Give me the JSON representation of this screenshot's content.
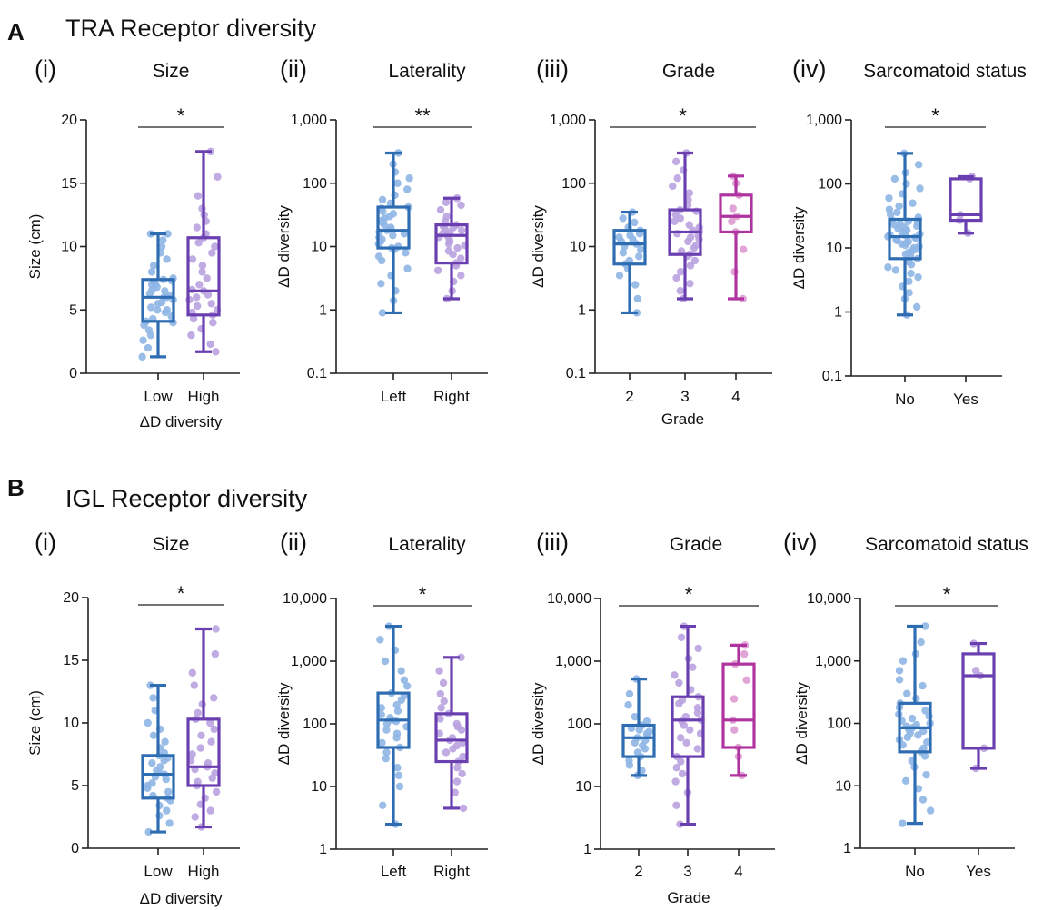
{
  "colors": {
    "blue": "#2f6db3",
    "purple": "#6a3fb0",
    "magenta": "#b0349f",
    "blue_dots": "#8fb6e6",
    "purple_dots": "#b9a2df",
    "magenta_dots": "#de9ad2"
  },
  "sections": [
    {
      "letter": "A",
      "title": "TRA Receptor diversity",
      "charts": [
        {
          "roman": "(i)",
          "subtitle": "Size",
          "ylabel": "Size (cm)",
          "xlabel": "ΔD diversity",
          "sig": "*",
          "sig_span": [
            0,
            1
          ]
        },
        {
          "roman": "(ii)",
          "subtitle": "Laterality",
          "ylabel": "ΔD diversity",
          "xlabel": "",
          "sig": "**",
          "sig_span": [
            0,
            1
          ]
        },
        {
          "roman": "(iii)",
          "subtitle": "Grade",
          "ylabel": "ΔD diversity",
          "xlabel": "Grade",
          "sig": "*",
          "sig_span": [
            0,
            2
          ]
        },
        {
          "roman": "(iv)",
          "subtitle": "Sarcomatoid status",
          "ylabel": "ΔD diversity",
          "xlabel": "",
          "sig": "*",
          "sig_span": [
            0,
            1
          ]
        }
      ]
    },
    {
      "letter": "B",
      "title": "IGL Receptor diversity",
      "charts": [
        {
          "roman": "(i)",
          "subtitle": "Size",
          "ylabel": "Size (cm)",
          "xlabel": "ΔD diversity",
          "sig": "*",
          "sig_span": [
            0,
            1
          ]
        },
        {
          "roman": "(ii)",
          "subtitle": "Laterality",
          "ylabel": "ΔD diversity",
          "xlabel": "",
          "sig": "*",
          "sig_span": [
            0,
            1
          ]
        },
        {
          "roman": "(iii)",
          "subtitle": "Grade",
          "ylabel": "ΔD diversity",
          "xlabel": "Grade",
          "sig": "*",
          "sig_span": [
            0,
            2
          ]
        },
        {
          "roman": "(iv)",
          "subtitle": "Sarcomatoid status",
          "ylabel": "ΔD diversity",
          "xlabel": "",
          "sig": "*",
          "sig_span": [
            0,
            1
          ]
        }
      ]
    }
  ],
  "chart_data": [
    {
      "type": "box",
      "panel": "A(i)",
      "scale": "linear",
      "ylim": [
        0,
        20
      ],
      "yticks": [
        0,
        5,
        10,
        15,
        20
      ],
      "ytick_labels": [
        "0",
        "5",
        "10",
        "15",
        "20"
      ],
      "categories": [
        "Low",
        "High"
      ],
      "boxes": [
        {
          "category": "Low",
          "color": "blue",
          "min": 1.3,
          "q1": 4.1,
          "median": 6.0,
          "q3": 7.4,
          "max": 11.0,
          "points": [
            1.3,
            2.0,
            2.6,
            3.0,
            3.4,
            3.8,
            4.0,
            4.1,
            4.3,
            4.5,
            4.8,
            5.0,
            5.0,
            5.2,
            5.5,
            5.6,
            5.8,
            6.0,
            6.0,
            6.1,
            6.3,
            6.5,
            6.6,
            6.8,
            7.0,
            7.0,
            7.2,
            7.3,
            7.4,
            7.5,
            8.0,
            8.5,
            9.0,
            9.5,
            10.0,
            10.5,
            11.0,
            11.0
          ]
        },
        {
          "category": "High",
          "color": "purple",
          "min": 1.7,
          "q1": 4.6,
          "median": 6.5,
          "q3": 10.7,
          "max": 17.5,
          "points": [
            1.7,
            2.3,
            3.0,
            3.5,
            4.0,
            4.3,
            4.6,
            4.8,
            5.0,
            5.3,
            5.5,
            5.8,
            6.0,
            6.2,
            6.5,
            6.6,
            7.0,
            7.5,
            8.0,
            8.5,
            9.0,
            9.5,
            10.0,
            10.3,
            10.7,
            11.0,
            11.5,
            12.0,
            12.5,
            13.0,
            14.0,
            15.5,
            17.5
          ]
        }
      ]
    },
    {
      "type": "box",
      "panel": "A(ii)",
      "scale": "log",
      "ylim": [
        0.1,
        1000
      ],
      "yticks": [
        0.1,
        1,
        10,
        100,
        1000
      ],
      "ytick_labels": [
        "0.1",
        "1",
        "10",
        "100",
        "1,000"
      ],
      "categories": [
        "Left",
        "Right"
      ],
      "boxes": [
        {
          "category": "Left",
          "color": "blue",
          "min": 0.9,
          "q1": 9.5,
          "median": 18,
          "q3": 42,
          "max": 300,
          "points": [
            0.9,
            1.4,
            2,
            2.6,
            3.5,
            4.5,
            6,
            7,
            8,
            9,
            9.5,
            10,
            11,
            12,
            13,
            14,
            15,
            16,
            17,
            18,
            19,
            20,
            22,
            24,
            26,
            28,
            30,
            33,
            36,
            40,
            42,
            48,
            55,
            65,
            80,
            100,
            120,
            150,
            200,
            300
          ]
        },
        {
          "category": "Right",
          "color": "purple",
          "min": 1.5,
          "q1": 5.5,
          "median": 15,
          "q3": 22,
          "max": 58,
          "points": [
            1.5,
            2,
            2.8,
            3.5,
            4.2,
            5,
            5.5,
            6.5,
            7.5,
            8.5,
            9.5,
            10.5,
            11,
            12,
            13,
            14,
            15,
            16,
            17,
            18,
            19,
            20,
            21,
            22,
            25,
            30,
            38,
            45,
            50,
            58
          ]
        }
      ]
    },
    {
      "type": "box",
      "panel": "A(iii)",
      "scale": "log",
      "ylim": [
        0.1,
        1000
      ],
      "yticks": [
        0.1,
        1,
        10,
        100,
        1000
      ],
      "ytick_labels": [
        "0.1",
        "1",
        "10",
        "100",
        "1,000"
      ],
      "categories": [
        "2",
        "3",
        "4"
      ],
      "boxes": [
        {
          "category": "2",
          "color": "blue",
          "min": 0.9,
          "q1": 5.3,
          "median": 11,
          "q3": 18,
          "max": 35,
          "points": [
            0.9,
            1.5,
            2.5,
            3.5,
            4.5,
            5.3,
            6,
            7,
            8,
            9,
            10,
            11,
            12,
            13,
            14,
            15,
            16,
            18,
            20,
            24,
            28,
            35
          ]
        },
        {
          "category": "3",
          "color": "purple",
          "min": 1.5,
          "q1": 7.5,
          "median": 17,
          "q3": 38,
          "max": 300,
          "points": [
            1.5,
            2,
            2.6,
            3.2,
            4,
            5,
            6,
            7,
            7.5,
            8.5,
            9.5,
            10.5,
            12,
            13,
            14,
            15,
            16,
            17,
            18,
            20,
            22,
            25,
            28,
            32,
            36,
            38,
            45,
            55,
            70,
            90,
            120,
            160,
            220,
            300
          ]
        },
        {
          "category": "4",
          "color": "magenta",
          "min": 1.5,
          "q1": 17,
          "median": 30,
          "q3": 65,
          "max": 130,
          "points": [
            1.5,
            4,
            9,
            17,
            25,
            30,
            40,
            65,
            100,
            130
          ]
        }
      ]
    },
    {
      "type": "box",
      "panel": "A(iv)",
      "scale": "log",
      "ylim": [
        0.1,
        1000
      ],
      "yticks": [
        0.1,
        1,
        10,
        100,
        1000
      ],
      "ytick_labels": [
        "0.1",
        "1",
        "10",
        "100",
        "1,000"
      ],
      "categories": [
        "No",
        "Yes"
      ],
      "boxes": [
        {
          "category": "No",
          "color": "blue",
          "min": 0.9,
          "q1": 6.8,
          "median": 15,
          "q3": 28,
          "max": 300,
          "points": [
            0.9,
            1.2,
            1.6,
            2,
            2.5,
            3,
            3.5,
            4,
            4.5,
            5,
            5.5,
            6,
            6.8,
            7.5,
            8,
            8.5,
            9,
            9.5,
            10,
            10.5,
            11,
            11.5,
            12,
            12.5,
            13,
            13.5,
            14,
            14.5,
            15,
            15.5,
            16,
            16.5,
            17,
            18,
            19,
            20,
            21,
            22,
            23,
            24,
            25,
            26,
            27,
            28,
            30,
            33,
            36,
            40,
            45,
            50,
            60,
            70,
            85,
            100,
            120,
            150,
            200,
            300
          ]
        },
        {
          "category": "Yes",
          "color": "purple",
          "min": 17,
          "q1": 27,
          "median": 33,
          "q3": 120,
          "max": 130,
          "points": [
            17,
            27,
            33,
            120,
            130
          ]
        }
      ]
    },
    {
      "type": "box",
      "panel": "B(i)",
      "scale": "linear",
      "ylim": [
        0,
        20
      ],
      "yticks": [
        0,
        5,
        10,
        15,
        20
      ],
      "ytick_labels": [
        "0",
        "5",
        "10",
        "15",
        "20"
      ],
      "categories": [
        "Low",
        "High"
      ],
      "boxes": [
        {
          "category": "Low",
          "color": "blue",
          "min": 1.3,
          "q1": 4.0,
          "median": 5.9,
          "q3": 7.4,
          "max": 13.0,
          "points": [
            1.3,
            2.0,
            2.6,
            3.0,
            3.4,
            3.8,
            4.0,
            4.2,
            4.5,
            4.8,
            5.0,
            5.2,
            5.5,
            5.7,
            5.9,
            6.0,
            6.2,
            6.5,
            6.8,
            7.0,
            7.2,
            7.4,
            7.6,
            8.0,
            8.5,
            9.0,
            9.5,
            10.0,
            11.0,
            12.0,
            13.0
          ]
        },
        {
          "category": "High",
          "color": "purple",
          "min": 1.7,
          "q1": 5.0,
          "median": 6.5,
          "q3": 10.3,
          "max": 17.5,
          "points": [
            1.7,
            2.5,
            3.0,
            3.5,
            4.0,
            4.5,
            5.0,
            5.3,
            5.6,
            6.0,
            6.3,
            6.5,
            6.8,
            7.0,
            7.5,
            8.0,
            8.5,
            9.0,
            9.5,
            10.0,
            10.3,
            10.8,
            11.5,
            12.0,
            13.0,
            14.0,
            15.5,
            17.5
          ]
        }
      ]
    },
    {
      "type": "box",
      "panel": "B(ii)",
      "scale": "log",
      "ylim": [
        1,
        10000
      ],
      "yticks": [
        1,
        10,
        100,
        1000,
        10000
      ],
      "ytick_labels": [
        "1",
        "10",
        "100",
        "1,000",
        "10,000"
      ],
      "categories": [
        "Left",
        "Right"
      ],
      "boxes": [
        {
          "category": "Left",
          "color": "blue",
          "min": 2.5,
          "q1": 42,
          "median": 115,
          "q3": 310,
          "max": 3600,
          "points": [
            2.5,
            5,
            10,
            15,
            20,
            28,
            35,
            42,
            50,
            60,
            70,
            80,
            90,
            100,
            110,
            115,
            125,
            140,
            160,
            180,
            200,
            240,
            280,
            310,
            400,
            500,
            700,
            1000,
            1500,
            2200,
            3600
          ]
        },
        {
          "category": "Right",
          "color": "purple",
          "min": 4.5,
          "q1": 25,
          "median": 55,
          "q3": 145,
          "max": 1150,
          "points": [
            4.5,
            8,
            12,
            16,
            20,
            25,
            30,
            35,
            40,
            45,
            50,
            55,
            60,
            70,
            80,
            90,
            100,
            120,
            145,
            180,
            230,
            300,
            450,
            700,
            1150
          ]
        }
      ]
    },
    {
      "type": "box",
      "panel": "B(iii)",
      "scale": "log",
      "ylim": [
        1,
        10000
      ],
      "yticks": [
        1,
        10,
        100,
        1000,
        10000
      ],
      "ytick_labels": [
        "1",
        "10",
        "100",
        "1,000",
        "10,000"
      ],
      "categories": [
        "2",
        "3",
        "4"
      ],
      "boxes": [
        {
          "category": "2",
          "color": "blue",
          "min": 15,
          "q1": 30,
          "median": 60,
          "q3": 95,
          "max": 520,
          "points": [
            15,
            18,
            22,
            26,
            30,
            35,
            40,
            45,
            50,
            55,
            60,
            65,
            70,
            75,
            80,
            85,
            95,
            110,
            130,
            200,
            300,
            520
          ]
        },
        {
          "category": "3",
          "color": "purple",
          "min": 2.5,
          "q1": 30,
          "median": 115,
          "q3": 270,
          "max": 3600,
          "points": [
            2.5,
            5,
            8,
            12,
            16,
            20,
            25,
            30,
            40,
            50,
            60,
            70,
            80,
            95,
            110,
            115,
            130,
            150,
            180,
            210,
            240,
            270,
            350,
            450,
            600,
            800,
            1100,
            1600,
            2400,
            3600
          ]
        },
        {
          "category": "4",
          "color": "magenta",
          "min": 15,
          "q1": 42,
          "median": 115,
          "q3": 900,
          "max": 1800,
          "points": [
            15,
            30,
            42,
            80,
            115,
            250,
            500,
            900,
            1300,
            1800
          ]
        }
      ]
    },
    {
      "type": "box",
      "panel": "B(iv)",
      "scale": "log",
      "ylim": [
        1,
        10000
      ],
      "yticks": [
        1,
        10,
        100,
        1000,
        10000
      ],
      "ytick_labels": [
        "1",
        "10",
        "100",
        "1,000",
        "10,000"
      ],
      "categories": [
        "No",
        "Yes"
      ],
      "boxes": [
        {
          "category": "No",
          "color": "blue",
          "min": 2.5,
          "q1": 35,
          "median": 85,
          "q3": 210,
          "max": 3600,
          "points": [
            2.5,
            4,
            6,
            9,
            12,
            15,
            20,
            25,
            30,
            35,
            40,
            45,
            50,
            55,
            60,
            65,
            70,
            75,
            80,
            85,
            90,
            95,
            100,
            110,
            120,
            130,
            140,
            160,
            180,
            210,
            250,
            300,
            400,
            500,
            700,
            1000,
            1300,
            2000,
            3600
          ]
        },
        {
          "category": "Yes",
          "color": "purple",
          "min": 19,
          "q1": 40,
          "median": 580,
          "q3": 1300,
          "max": 1900,
          "points": [
            19,
            40,
            580,
            700,
            1900
          ]
        }
      ]
    }
  ]
}
